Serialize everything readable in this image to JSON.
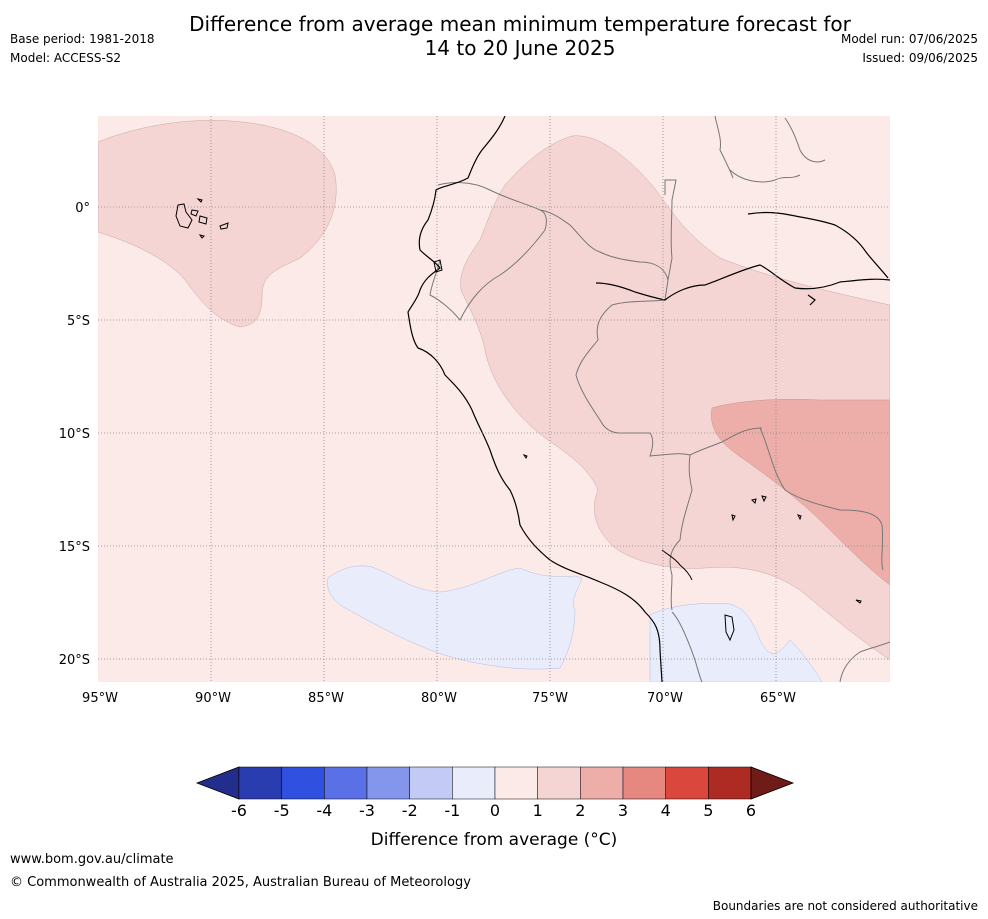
{
  "header": {
    "title_line1": "Difference from average mean minimum temperature forecast for",
    "title_line2": "14 to 20 June 2025",
    "base_period": "Base period: 1981-2018",
    "model": "Model: ACCESS-S2",
    "model_run": "Model run: 07/06/2025",
    "issued": "Issued: 09/06/2025"
  },
  "map": {
    "lat_labels": [
      "0°",
      "5°S",
      "10°S",
      "15°S",
      "20°S"
    ],
    "lon_labels": [
      "95°W",
      "90°W",
      "85°W",
      "80°W",
      "75°W",
      "70°W",
      "65°W"
    ],
    "lon_range": [
      -95,
      -60
    ],
    "lat_range": [
      -21,
      4
    ]
  },
  "colorbar": {
    "title": "Difference from average (°C)",
    "ticks": [
      "-6",
      "-5",
      "-4",
      "-3",
      "-2",
      "-1",
      "0",
      "1",
      "2",
      "3",
      "4",
      "5",
      "6"
    ],
    "colors": [
      "#232d8c",
      "#2a3db0",
      "#3050e0",
      "#5a70e6",
      "#8496ec",
      "#c2caf5",
      "#e8ecfb",
      "#fbeae8",
      "#f5d5d3",
      "#edaeaa",
      "#e68880",
      "#d9473d",
      "#ad2b22",
      "#6f1c18"
    ]
  },
  "footer": {
    "url": "www.bom.gov.au/climate",
    "copyright": "© Commonwealth of Australia 2025, Australian Bureau of Meteorology",
    "disclaimer": "Boundaries are not considered authoritative"
  }
}
